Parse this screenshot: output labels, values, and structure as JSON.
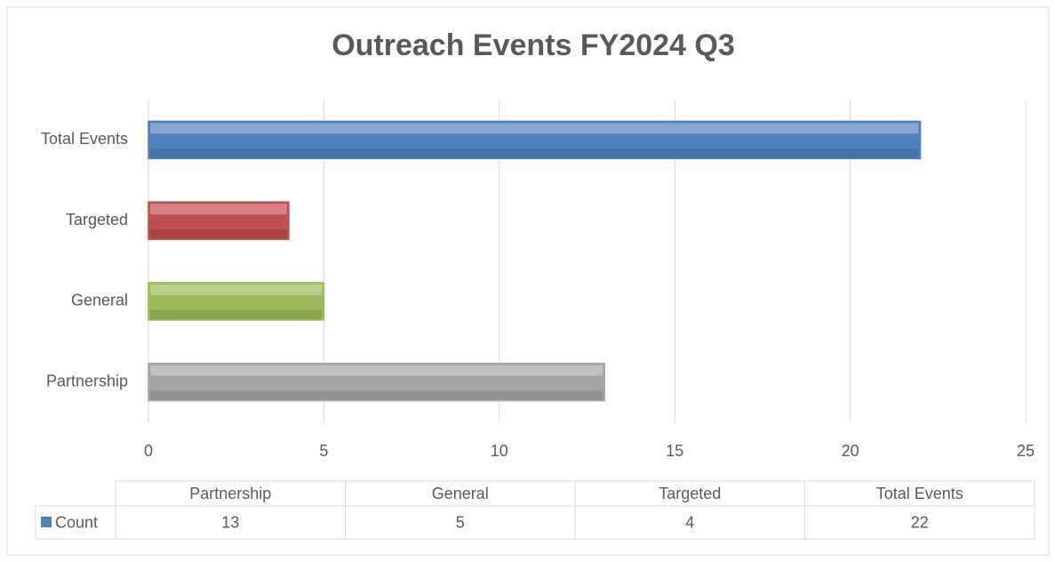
{
  "chart_data": {
    "type": "hbar",
    "title": "Outreach Events FY2024 Q3",
    "categories": [
      "Partnership",
      "General",
      "Targeted",
      "Total Events"
    ],
    "series": [
      {
        "name": "Count",
        "color": "#4f81bd",
        "point_colors": [
          "#a5a5a5",
          "#9bbb59",
          "#c0504d",
          "#4f81bd"
        ],
        "values": [
          13,
          5,
          4,
          22
        ]
      }
    ],
    "xlim": [
      0,
      25
    ],
    "xticks": [
      0,
      5,
      10,
      15,
      20,
      25
    ],
    "grid": true,
    "data_table": true
  }
}
